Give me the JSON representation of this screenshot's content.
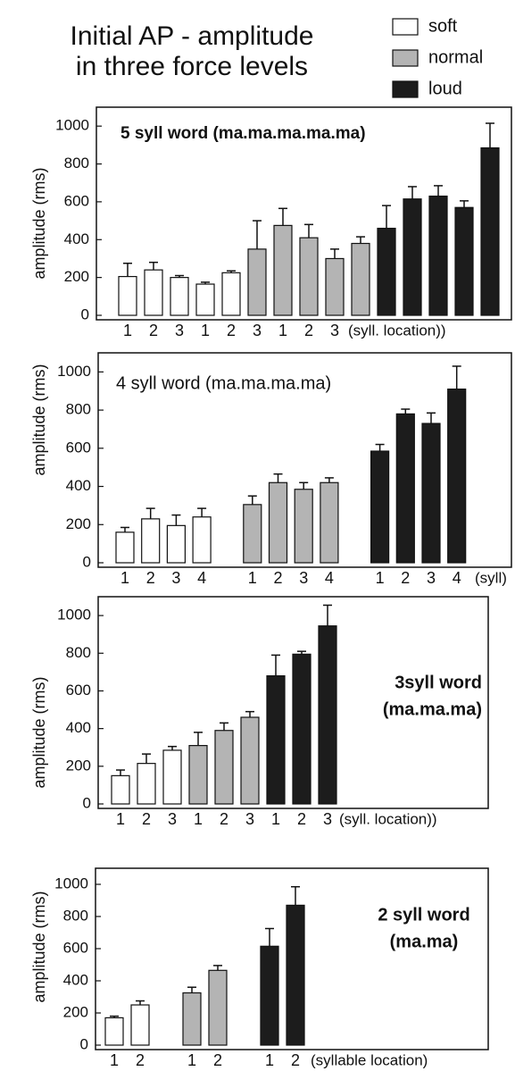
{
  "title": [
    "Initial AP - amplitude",
    "in three force levels"
  ],
  "chart_data": [
    {
      "type": "bar",
      "title": [
        "5 syll word (ma.ma.ma.ma.ma)"
      ],
      "ylabel": "amplitude (rms)",
      "xlabel": "(syll. location))",
      "categories": [
        "1",
        "2",
        "3",
        "1",
        "2",
        "3",
        "1",
        "2",
        "3",
        null,
        null,
        null,
        null,
        null,
        null
      ],
      "ylim": [
        0,
        1100
      ],
      "yticks": [
        0,
        200,
        400,
        600,
        800,
        1000
      ],
      "series": [
        {
          "name": "soft",
          "color": "#ffffff",
          "values": [
            205,
            240,
            200,
            165,
            225,
            null,
            null,
            null,
            null,
            null,
            null,
            null,
            null,
            null,
            null
          ],
          "errors": [
            70,
            40,
            10,
            10,
            10,
            null,
            null,
            null,
            null,
            null,
            null,
            null,
            null,
            null,
            null
          ]
        },
        {
          "name": "normal",
          "color": "#b4b4b4",
          "values": [
            null,
            null,
            null,
            null,
            null,
            350,
            475,
            410,
            300,
            380,
            null,
            null,
            null,
            null,
            null
          ],
          "errors": [
            null,
            null,
            null,
            null,
            null,
            150,
            90,
            70,
            50,
            35,
            null,
            null,
            null,
            null,
            null
          ]
        },
        {
          "name": "loud",
          "color": "#1c1c1c",
          "values": [
            null,
            null,
            null,
            null,
            null,
            null,
            null,
            null,
            null,
            null,
            460,
            615,
            630,
            570,
            885
          ],
          "errors": [
            null,
            null,
            null,
            null,
            null,
            null,
            null,
            null,
            null,
            null,
            120,
            65,
            55,
            35,
            130
          ]
        }
      ]
    },
    {
      "type": "bar",
      "title": [
        "4 syll word (ma.ma.ma.ma)"
      ],
      "ylabel": "amplitude (rms)",
      "xlabel": "(syll)",
      "categories": [
        "1",
        "2",
        "3",
        "4",
        "1",
        "2",
        "3",
        "4",
        "1",
        "2",
        "3",
        "4"
      ],
      "ylim": [
        0,
        1100
      ],
      "yticks": [
        0,
        200,
        400,
        600,
        800,
        1000
      ],
      "series": [
        {
          "name": "soft",
          "color": "#ffffff",
          "values": [
            160,
            230,
            195,
            240,
            null,
            null,
            null,
            null,
            null,
            null,
            null,
            null
          ],
          "errors": [
            25,
            55,
            55,
            45,
            null,
            null,
            null,
            null,
            null,
            null,
            null,
            null
          ]
        },
        {
          "name": "normal",
          "color": "#b4b4b4",
          "values": [
            null,
            null,
            null,
            null,
            305,
            420,
            385,
            420,
            null,
            null,
            null,
            null
          ],
          "errors": [
            null,
            null,
            null,
            null,
            45,
            45,
            35,
            25,
            null,
            null,
            null,
            null
          ]
        },
        {
          "name": "loud",
          "color": "#1c1c1c",
          "values": [
            null,
            null,
            null,
            null,
            null,
            null,
            null,
            null,
            585,
            780,
            730,
            910
          ],
          "errors": [
            null,
            null,
            null,
            null,
            null,
            null,
            null,
            null,
            35,
            25,
            55,
            120
          ]
        }
      ]
    },
    {
      "type": "bar",
      "title": [
        "3syll word",
        "(ma.ma.ma)"
      ],
      "ylabel": "amplitude (rms)",
      "xlabel": "(syll. location))",
      "categories": [
        "1",
        "2",
        "3",
        "1",
        "2",
        "3",
        "1",
        "2",
        "3"
      ],
      "ylim": [
        0,
        1100
      ],
      "yticks": [
        0,
        200,
        400,
        600,
        800,
        1000
      ],
      "series": [
        {
          "name": "soft",
          "color": "#ffffff",
          "values": [
            150,
            215,
            285,
            null,
            null,
            null,
            null,
            null,
            null
          ],
          "errors": [
            30,
            50,
            20,
            null,
            null,
            null,
            null,
            null,
            null
          ]
        },
        {
          "name": "normal",
          "color": "#b4b4b4",
          "values": [
            null,
            null,
            null,
            310,
            390,
            460,
            null,
            null,
            null
          ],
          "errors": [
            null,
            null,
            null,
            70,
            40,
            30,
            null,
            null,
            null
          ]
        },
        {
          "name": "loud",
          "color": "#1c1c1c",
          "values": [
            null,
            null,
            null,
            null,
            null,
            null,
            680,
            795,
            945
          ],
          "errors": [
            null,
            null,
            null,
            null,
            null,
            null,
            110,
            15,
            110
          ]
        }
      ]
    },
    {
      "type": "bar",
      "title": [
        "2 syll word",
        "(ma.ma)"
      ],
      "ylabel": "amplitude (rms)",
      "xlabel": "(syllable location)",
      "categories": [
        "1",
        "2",
        "1",
        "2",
        "1",
        "2"
      ],
      "ylim": [
        0,
        1100
      ],
      "yticks": [
        0,
        200,
        400,
        600,
        800,
        1000
      ],
      "series": [
        {
          "name": "soft",
          "color": "#ffffff",
          "values": [
            170,
            250,
            null,
            null,
            null,
            null
          ],
          "errors": [
            10,
            25,
            null,
            null,
            null,
            null
          ]
        },
        {
          "name": "normal",
          "color": "#b4b4b4",
          "values": [
            null,
            null,
            325,
            465,
            null,
            null
          ],
          "errors": [
            null,
            null,
            35,
            30,
            null,
            null
          ]
        },
        {
          "name": "loud",
          "color": "#1c1c1c",
          "values": [
            null,
            null,
            null,
            null,
            615,
            870
          ],
          "errors": [
            null,
            null,
            null,
            null,
            110,
            115
          ]
        }
      ]
    }
  ]
}
